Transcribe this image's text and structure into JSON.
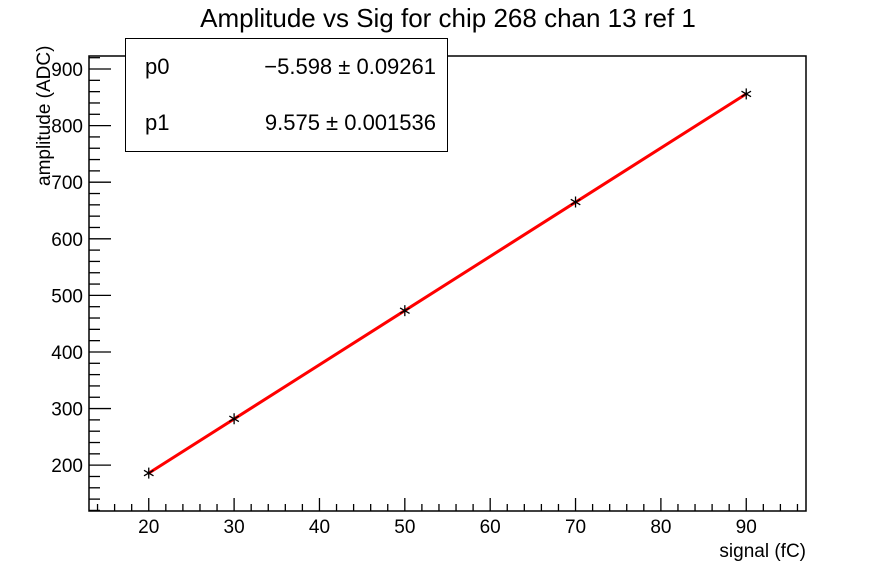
{
  "chart_data": {
    "type": "scatter",
    "title": "Amplitude vs Sig for chip 268 chan 13 ref 1",
    "xlabel": "signal (fC)",
    "ylabel": "amplitude (ADC)",
    "x": [
      20,
      30,
      50,
      70,
      90
    ],
    "y": [
      186,
      282,
      473,
      665,
      856
    ],
    "marker": "asterisk",
    "fit": {
      "name": "linear",
      "p0": -5.598,
      "p0_err": 0.09261,
      "p1": 9.575,
      "p1_err": 0.001536,
      "x_range": [
        20,
        90
      ],
      "color": "#ff0000"
    },
    "xlim": [
      13,
      97
    ],
    "ylim": [
      119,
      923
    ],
    "x_major_ticks": [
      20,
      30,
      40,
      50,
      60,
      70,
      80,
      90
    ],
    "y_major_ticks": [
      200,
      300,
      400,
      500,
      600,
      700,
      800,
      900
    ],
    "x_minor_step": 2,
    "y_minor_step": 20,
    "grid": false,
    "legend_position": null,
    "stats_box": {
      "rows": [
        {
          "name": "p0",
          "value": "−5.598 ± 0.09261"
        },
        {
          "name": "p1",
          "value": "9.575 ± 0.001536"
        }
      ]
    },
    "colors": {
      "fit_line": "#ff0000",
      "marker": "#000000",
      "axis": "#000000",
      "text": "#000000",
      "background": "#ffffff"
    }
  }
}
